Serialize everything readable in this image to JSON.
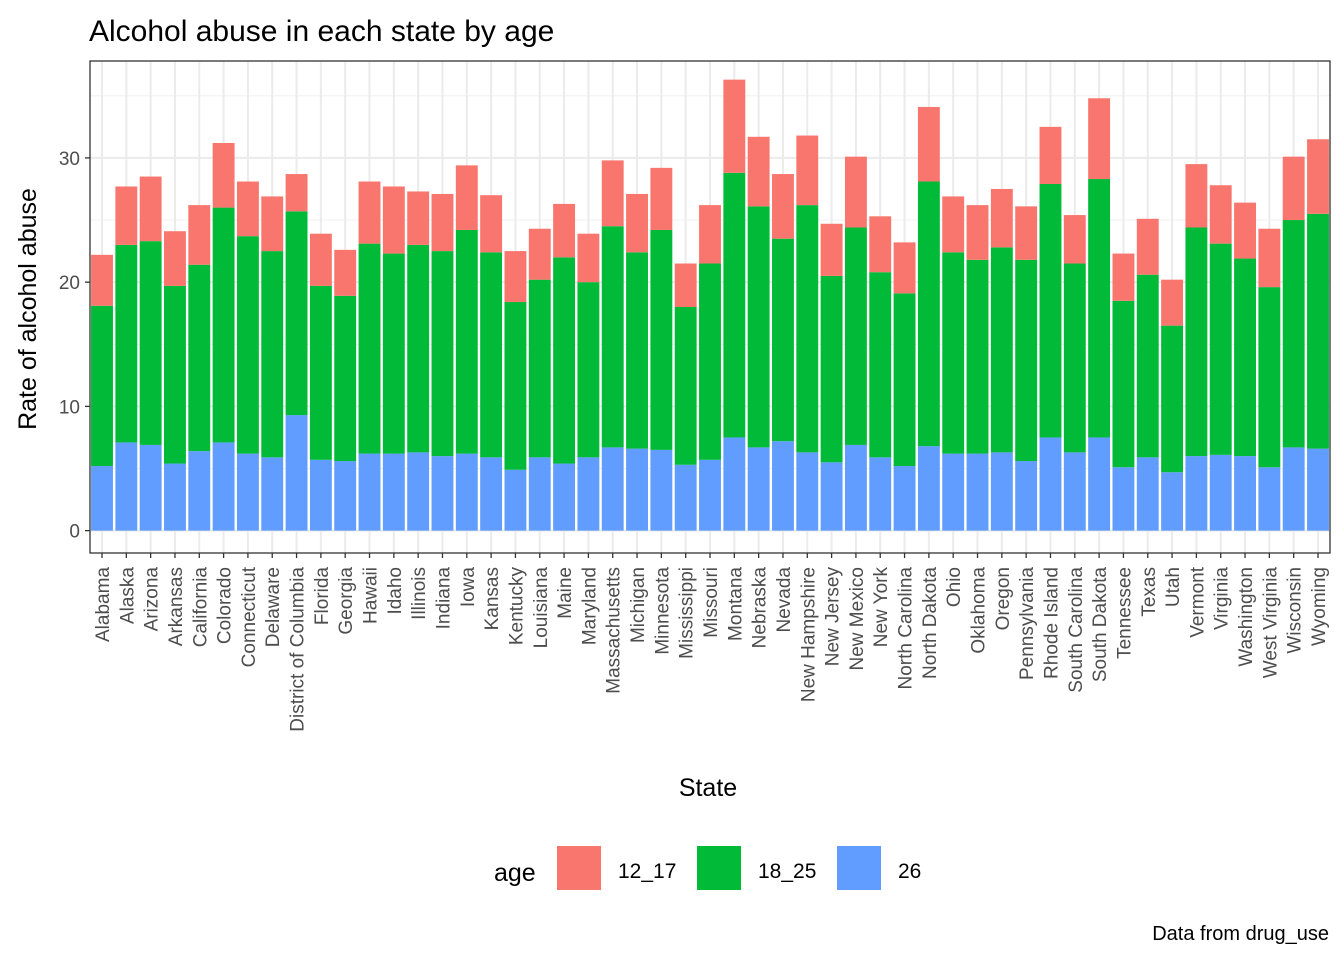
{
  "chart_data": {
    "type": "bar",
    "stacked": true,
    "title": "Alcohol abuse in each state by age",
    "xlabel": "State",
    "ylabel": "Rate of alcohol abuse",
    "caption": "Data from drug_use",
    "ylim": [
      -1.8,
      37.8
    ],
    "yticks": [
      0,
      10,
      20,
      30
    ],
    "grid": true,
    "legend_position": "bottom",
    "legend_title": "age",
    "categories": [
      "Alabama",
      "Alaska",
      "Arizona",
      "Arkansas",
      "California",
      "Colorado",
      "Connecticut",
      "Delaware",
      "District of Columbia",
      "Florida",
      "Georgia",
      "Hawaii",
      "Idaho",
      "Illinois",
      "Indiana",
      "Iowa",
      "Kansas",
      "Kentucky",
      "Louisiana",
      "Maine",
      "Maryland",
      "Massachusetts",
      "Michigan",
      "Minnesota",
      "Mississippi",
      "Missouri",
      "Montana",
      "Nebraska",
      "Nevada",
      "New Hampshire",
      "New Jersey",
      "New Mexico",
      "New York",
      "North Carolina",
      "North Dakota",
      "Ohio",
      "Oklahoma",
      "Oregon",
      "Pennsylvania",
      "Rhode Island",
      "South Carolina",
      "South Dakota",
      "Tennessee",
      "Texas",
      "Utah",
      "Vermont",
      "Virginia",
      "Washington",
      "West Virginia",
      "Wisconsin",
      "Wyoming"
    ],
    "series": [
      {
        "name": "26",
        "color": "#619cff",
        "values": [
          5.2,
          7.1,
          6.9,
          5.4,
          6.4,
          7.1,
          6.2,
          5.9,
          9.3,
          5.7,
          5.6,
          6.2,
          6.2,
          6.3,
          6.0,
          6.2,
          5.9,
          4.9,
          5.9,
          5.4,
          5.9,
          6.7,
          6.6,
          6.5,
          5.3,
          5.7,
          7.5,
          6.7,
          7.2,
          6.3,
          5.5,
          6.9,
          5.9,
          5.2,
          6.8,
          6.2,
          6.2,
          6.3,
          5.6,
          7.5,
          6.3,
          7.5,
          5.1,
          5.9,
          4.7,
          6.0,
          6.1,
          6.0,
          5.1,
          6.7,
          6.6
        ]
      },
      {
        "name": "18_25",
        "color": "#00ba38",
        "values": [
          12.9,
          15.9,
          16.4,
          14.3,
          15.0,
          18.9,
          17.5,
          16.6,
          16.4,
          14.0,
          13.3,
          16.9,
          16.1,
          16.7,
          16.5,
          18.0,
          16.5,
          13.5,
          14.3,
          16.6,
          14.1,
          17.8,
          15.8,
          17.7,
          12.7,
          15.8,
          21.3,
          19.4,
          16.3,
          19.9,
          15.0,
          17.5,
          14.9,
          13.9,
          21.3,
          16.2,
          15.6,
          16.5,
          16.2,
          20.4,
          15.2,
          20.8,
          13.4,
          14.7,
          11.8,
          18.4,
          17.0,
          15.9,
          14.5,
          18.3,
          18.9
        ]
      },
      {
        "name": "12_17",
        "color": "#f8766d",
        "values": [
          4.1,
          4.7,
          5.2,
          4.4,
          4.8,
          5.2,
          4.4,
          4.4,
          3.0,
          4.2,
          3.7,
          5.0,
          5.4,
          4.3,
          4.6,
          5.2,
          4.6,
          4.1,
          4.1,
          4.3,
          3.9,
          5.3,
          4.7,
          5.0,
          3.5,
          4.7,
          7.5,
          5.6,
          5.2,
          5.6,
          4.2,
          5.7,
          4.5,
          4.1,
          6.0,
          4.5,
          4.4,
          4.7,
          4.3,
          4.6,
          3.9,
          6.5,
          3.8,
          4.5,
          3.7,
          5.1,
          4.7,
          4.5,
          4.7,
          5.1,
          6.0
        ]
      }
    ],
    "legend": [
      {
        "label": "12_17",
        "color": "#f8766d"
      },
      {
        "label": "18_25",
        "color": "#00ba38"
      },
      {
        "label": "26",
        "color": "#619cff"
      }
    ]
  }
}
